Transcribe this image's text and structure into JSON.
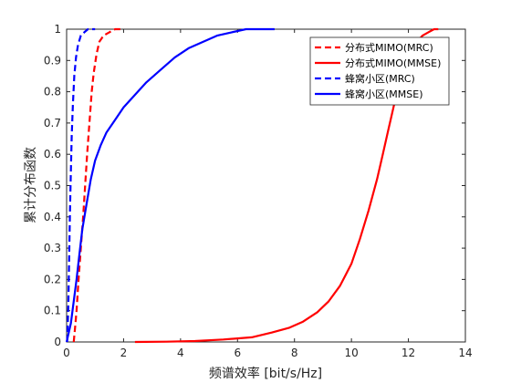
{
  "chart_data": {
    "type": "line",
    "title": "",
    "xlabel": "频谱效率 [bit/s/Hz]",
    "ylabel": "累计分布函数",
    "xlim": [
      0,
      14
    ],
    "ylim": [
      0,
      1
    ],
    "xticks": [
      0,
      2,
      4,
      6,
      8,
      10,
      12,
      14
    ],
    "yticks": [
      0,
      0.1,
      0.2,
      0.3,
      0.4,
      0.5,
      0.6,
      0.7,
      0.8,
      0.9,
      1
    ],
    "grid": false,
    "legend_position": "top-right",
    "series": [
      {
        "name": "分布式MIMO(MRC)",
        "color": "#ff0000",
        "dash": "dashed",
        "x": [
          0.25,
          0.3,
          0.35,
          0.42,
          0.5,
          0.58,
          0.65,
          0.72,
          0.8,
          0.88,
          0.95,
          1.05,
          1.15,
          1.3,
          1.5,
          1.7,
          2.0
        ],
        "y": [
          0,
          0.05,
          0.1,
          0.2,
          0.3,
          0.4,
          0.5,
          0.6,
          0.7,
          0.8,
          0.86,
          0.92,
          0.96,
          0.98,
          0.99,
          1.0,
          1.0
        ]
      },
      {
        "name": "分布式MIMO(MMSE)",
        "color": "#ff0000",
        "dash": "solid",
        "x": [
          2.4,
          3.5,
          4.5,
          5.5,
          6.5,
          7.2,
          7.8,
          8.3,
          8.8,
          9.2,
          9.6,
          10.0,
          10.3,
          10.6,
          10.9,
          11.1,
          11.3,
          11.5,
          11.7,
          11.9,
          12.1,
          12.3,
          12.5,
          12.7,
          12.9,
          13.05
        ],
        "y": [
          0,
          0.001,
          0.003,
          0.008,
          0.015,
          0.03,
          0.045,
          0.065,
          0.095,
          0.13,
          0.18,
          0.25,
          0.33,
          0.42,
          0.52,
          0.6,
          0.68,
          0.76,
          0.83,
          0.89,
          0.93,
          0.96,
          0.98,
          0.99,
          1.0,
          1.0
        ]
      },
      {
        "name": "蜂窝小区(MRC)",
        "color": "#0000ff",
        "dash": "dashed",
        "x": [
          0.02,
          0.04,
          0.06,
          0.08,
          0.1,
          0.12,
          0.15,
          0.18,
          0.22,
          0.27,
          0.33,
          0.4,
          0.5,
          0.62,
          0.75,
          0.9,
          1.0
        ],
        "y": [
          0,
          0.05,
          0.12,
          0.22,
          0.32,
          0.42,
          0.55,
          0.66,
          0.76,
          0.85,
          0.91,
          0.95,
          0.98,
          0.99,
          1.0,
          1.0,
          1.0
        ]
      },
      {
        "name": "蜂窝小区(MMSE)",
        "color": "#0000ff",
        "dash": "solid",
        "x": [
          0.0,
          0.15,
          0.25,
          0.35,
          0.45,
          0.55,
          0.7,
          0.85,
          1.0,
          1.2,
          1.4,
          1.7,
          2.0,
          2.4,
          2.8,
          3.3,
          3.8,
          4.3,
          4.8,
          5.3,
          5.8,
          6.3,
          6.7,
          7.0,
          7.3
        ],
        "y": [
          0,
          0.06,
          0.13,
          0.2,
          0.28,
          0.36,
          0.44,
          0.52,
          0.58,
          0.63,
          0.67,
          0.71,
          0.75,
          0.79,
          0.83,
          0.87,
          0.91,
          0.94,
          0.96,
          0.98,
          0.99,
          1.0,
          1.0,
          1.0,
          1.0
        ]
      }
    ]
  }
}
